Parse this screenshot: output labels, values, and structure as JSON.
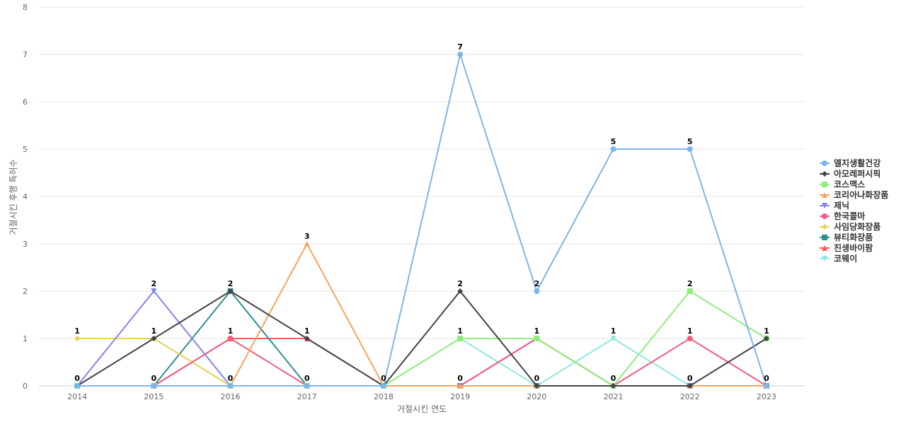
{
  "chart_data": {
    "type": "line",
    "xlabel": "거절시킨 연도",
    "ylabel": "거절시킨 후행 특허수",
    "ylim": [
      0,
      8
    ],
    "yticks": [
      0,
      1,
      2,
      3,
      4,
      5,
      6,
      7,
      8
    ],
    "categories": [
      "2014",
      "2015",
      "2016",
      "2017",
      "2018",
      "2019",
      "2020",
      "2021",
      "2022",
      "2023"
    ],
    "grid": "horizontal",
    "legend_position": "right",
    "series": [
      {
        "name": "엘지생활건강",
        "color": "#7cb5ec",
        "marker": "circle",
        "values": [
          0,
          0,
          0,
          0,
          0,
          7,
          2,
          5,
          5,
          0
        ],
        "show_labels": true
      },
      {
        "name": "아모레퍼시픽",
        "color": "#434348",
        "marker": "diamond",
        "values": [
          0,
          1,
          2,
          1,
          0,
          2,
          0,
          0,
          0,
          1
        ],
        "show_labels": false
      },
      {
        "name": "코스맥스",
        "color": "#90ed7d",
        "marker": "square",
        "values": [
          0,
          0,
          0,
          0,
          0,
          1,
          1,
          0,
          2,
          1
        ],
        "show_labels": false
      },
      {
        "name": "코리아나화장품",
        "color": "#f7a35c",
        "marker": "triangle",
        "values": [
          0,
          0,
          0,
          3,
          0,
          0,
          0,
          0,
          0,
          0
        ],
        "show_labels": false
      },
      {
        "name": "제닉",
        "color": "#8085e9",
        "marker": "triangle-down",
        "values": [
          0,
          2,
          0,
          0,
          0,
          0,
          0,
          0,
          0,
          0
        ],
        "show_labels": false
      },
      {
        "name": "한국콜마",
        "color": "#f15c80",
        "marker": "circle",
        "values": [
          0,
          0,
          1,
          0,
          0,
          0,
          1,
          0,
          1,
          0
        ],
        "show_labels": false
      },
      {
        "name": "사임당화장품",
        "color": "#e4d354",
        "marker": "diamond",
        "values": [
          1,
          1,
          0,
          0,
          0,
          0,
          0,
          0,
          0,
          0
        ],
        "show_labels": false
      },
      {
        "name": "뷰티화장품",
        "color": "#2b908f",
        "marker": "square",
        "values": [
          0,
          0,
          2,
          0,
          0,
          0,
          0,
          0,
          0,
          0
        ],
        "show_labels": false
      },
      {
        "name": "진생바이팜",
        "color": "#f45b5b",
        "marker": "triangle",
        "values": [
          0,
          0,
          1,
          1,
          0,
          0,
          1,
          0,
          0,
          0
        ],
        "show_labels": false
      },
      {
        "name": "코웨이",
        "color": "#91e8e1",
        "marker": "triangle-down",
        "values": [
          0,
          0,
          0,
          0,
          0,
          1,
          0,
          1,
          0,
          0
        ],
        "show_labels": false
      }
    ],
    "data_labels": [
      {
        "category": "2014",
        "value": 1,
        "text": "1"
      },
      {
        "category": "2014",
        "value": 0,
        "text": "0"
      },
      {
        "category": "2015",
        "value": 2,
        "text": "2"
      },
      {
        "category": "2015",
        "value": 1,
        "text": "1"
      },
      {
        "category": "2015",
        "value": 0,
        "text": "0"
      },
      {
        "category": "2016",
        "value": 2,
        "text": "2"
      },
      {
        "category": "2016",
        "value": 1,
        "text": "1"
      },
      {
        "category": "2016",
        "value": 0,
        "text": "0"
      },
      {
        "category": "2017",
        "value": 3,
        "text": "3"
      },
      {
        "category": "2017",
        "value": 1,
        "text": "1"
      },
      {
        "category": "2017",
        "value": 0,
        "text": "0"
      },
      {
        "category": "2018",
        "value": 0,
        "text": "0"
      },
      {
        "category": "2019",
        "value": 7,
        "text": "7"
      },
      {
        "category": "2019",
        "value": 2,
        "text": "2"
      },
      {
        "category": "2019",
        "value": 1,
        "text": "1"
      },
      {
        "category": "2019",
        "value": 0,
        "text": "0"
      },
      {
        "category": "2020",
        "value": 2,
        "text": "2"
      },
      {
        "category": "2020",
        "value": 1,
        "text": "1"
      },
      {
        "category": "2020",
        "value": 0,
        "text": "0"
      },
      {
        "category": "2021",
        "value": 5,
        "text": "5"
      },
      {
        "category": "2021",
        "value": 1,
        "text": "1"
      },
      {
        "category": "2021",
        "value": 0,
        "text": "0"
      },
      {
        "category": "2022",
        "value": 5,
        "text": "5"
      },
      {
        "category": "2022",
        "value": 2,
        "text": "2"
      },
      {
        "category": "2022",
        "value": 1,
        "text": "1"
      },
      {
        "category": "2022",
        "value": 0,
        "text": "0"
      },
      {
        "category": "2023",
        "value": 1,
        "text": "1"
      },
      {
        "category": "2023",
        "value": 0,
        "text": "0"
      }
    ]
  }
}
